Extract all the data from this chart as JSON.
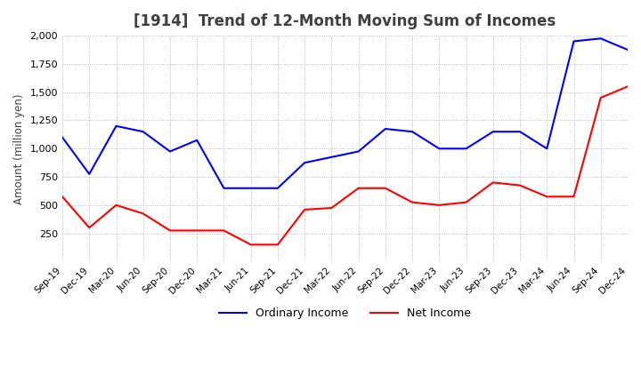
{
  "title": "[1914]  Trend of 12-Month Moving Sum of Incomes",
  "ylabel": "Amount (million yen)",
  "ylim": [
    0,
    2000
  ],
  "yticks": [
    250,
    500,
    750,
    1000,
    1250,
    1500,
    1750,
    2000
  ],
  "x_labels": [
    "Sep-19",
    "Dec-19",
    "Mar-20",
    "Jun-20",
    "Sep-20",
    "Dec-20",
    "Mar-21",
    "Jun-21",
    "Sep-21",
    "Dec-21",
    "Mar-22",
    "Jun-22",
    "Sep-22",
    "Dec-22",
    "Mar-23",
    "Jun-23",
    "Sep-23",
    "Dec-23",
    "Mar-24",
    "Jun-24",
    "Sep-24",
    "Dec-24"
  ],
  "ordinary_income": [
    1100,
    775,
    1200,
    1150,
    975,
    1075,
    650,
    650,
    650,
    875,
    925,
    975,
    1175,
    1150,
    1000,
    1000,
    1150,
    1150,
    1000,
    1950,
    1975,
    1875
  ],
  "net_income": [
    575,
    300,
    500,
    425,
    275,
    275,
    275,
    150,
    150,
    460,
    475,
    650,
    650,
    525,
    500,
    525,
    700,
    675,
    575,
    575,
    1450,
    1550
  ],
  "ordinary_color": "#0000ff",
  "net_color": "#ff0000",
  "background_color": "#ffffff",
  "grid_color": "#aaaaaa",
  "title_color": "#404040",
  "title_fontsize": 12,
  "legend_labels": [
    "Ordinary Income",
    "Net Income"
  ]
}
